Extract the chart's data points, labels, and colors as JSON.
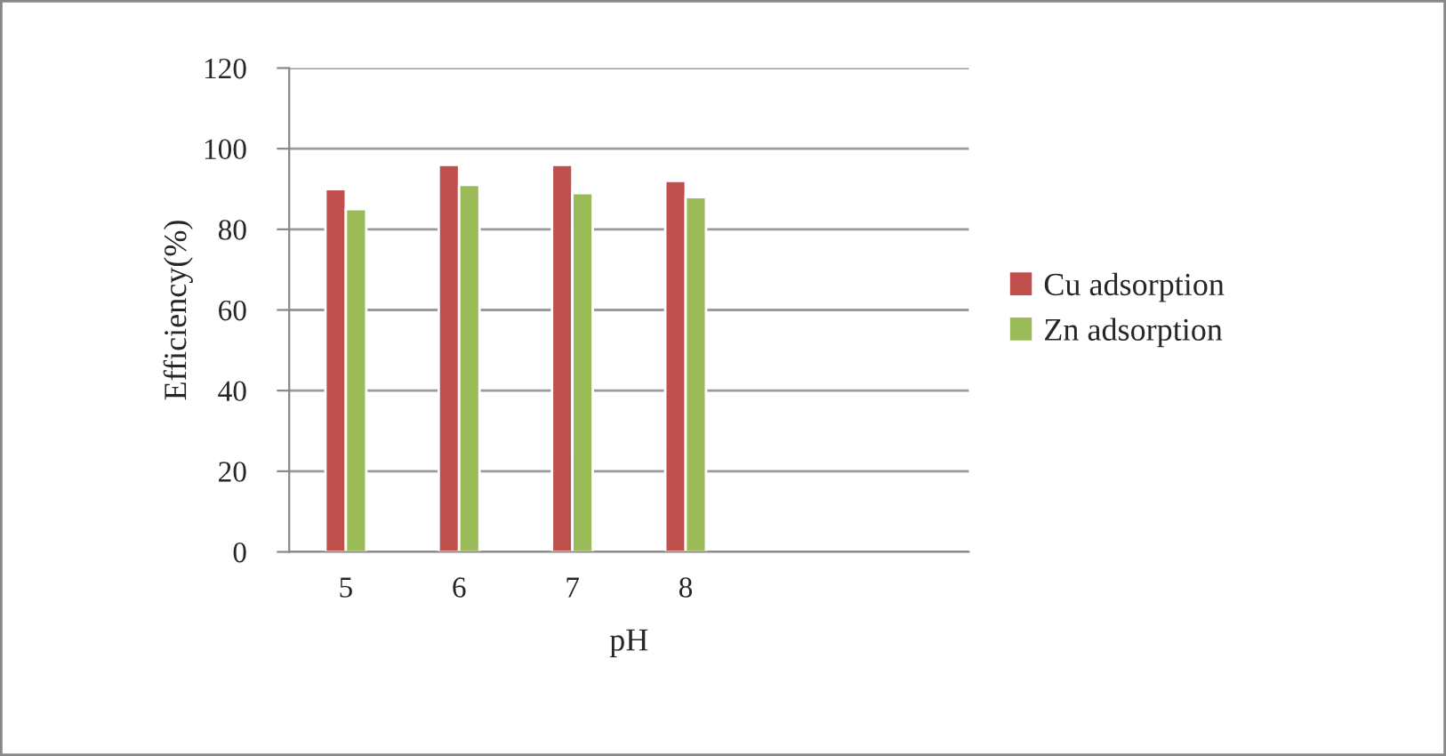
{
  "chart_data": {
    "type": "bar",
    "xlabel": "pH",
    "ylabel": "Efficiency(%)",
    "categories": [
      "5",
      "6",
      "7",
      "8",
      null,
      null
    ],
    "series": [
      {
        "name": "Cu adsorption",
        "color": "#c0504d",
        "values": [
          90,
          96,
          96,
          92,
          null,
          null
        ]
      },
      {
        "name": "Zn adsorption",
        "color": "#9bbb59",
        "values": [
          85,
          91,
          89,
          88,
          null,
          null
        ]
      }
    ],
    "ylim": [
      0,
      120
    ],
    "yticks": [
      0,
      20,
      40,
      60,
      80,
      100,
      120
    ],
    "grid": "y",
    "legend": "right"
  }
}
